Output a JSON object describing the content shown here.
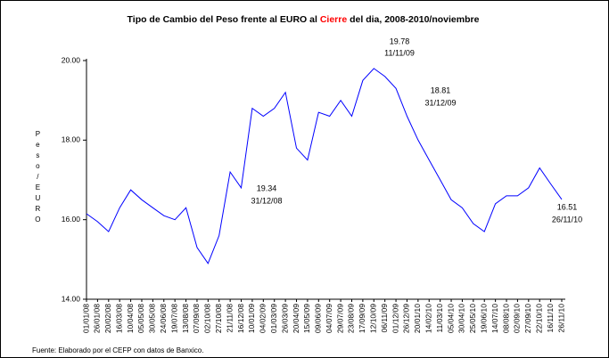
{
  "chart_data": {
    "type": "line",
    "title": [
      "Tipo de Cambio del Peso frente al EURO al ",
      "Cierre",
      " del dia, 2008-2010/noviembre"
    ],
    "title_colors": [
      "#000000",
      "#ff0000",
      "#000000"
    ],
    "y_label": "Peso/EURO",
    "source": "Fuente: Elaborado por el CEFP con datos de Banxico.",
    "categories": [
      "01/01/08",
      "26/01/08",
      "20/02/08",
      "16/03/08",
      "10/04/08",
      "05/05/08",
      "30/05/08",
      "24/06/08",
      "19/07/08",
      "13/08/08",
      "07/09/08",
      "02/10/08",
      "27/10/08",
      "21/11/08",
      "16/12/08",
      "10/01/09",
      "04/02/09",
      "01/03/09",
      "26/03/09",
      "20/04/09",
      "15/05/09",
      "09/06/09",
      "04/07/09",
      "29/07/09",
      "23/08/09",
      "17/09/09",
      "12/10/09",
      "06/11/09",
      "01/12/09",
      "26/12/09",
      "20/01/10",
      "14/02/10",
      "11/03/10",
      "05/04/10",
      "30/04/10",
      "25/05/10",
      "19/06/10",
      "14/07/10",
      "08/08/10",
      "02/09/10",
      "27/09/10",
      "22/10/10",
      "16/11/10",
      "26/11/10"
    ],
    "values": [
      16.15,
      15.95,
      15.7,
      16.3,
      16.75,
      16.5,
      16.3,
      16.1,
      16.0,
      16.3,
      15.3,
      14.9,
      15.6,
      17.2,
      16.8,
      18.8,
      18.6,
      18.8,
      19.2,
      17.8,
      17.5,
      18.7,
      18.6,
      19.0,
      18.6,
      19.5,
      19.8,
      19.6,
      19.3,
      18.6,
      18.0,
      17.5,
      17.0,
      16.5,
      16.3,
      15.9,
      15.7,
      16.4,
      16.6,
      16.6,
      16.8,
      17.3,
      16.9,
      16.51
    ],
    "color": "#0000ff",
    "ylim": [
      14,
      20
    ],
    "yticks": [
      {
        "value": 14,
        "label": "14.00"
      },
      {
        "value": 16,
        "label": "16.00"
      },
      {
        "value": 18,
        "label": "18.00"
      },
      {
        "value": 20,
        "label": "20.00"
      }
    ],
    "annotations": [
      {
        "value": "19.78",
        "date": "11/11/09"
      },
      {
        "value": "18.81",
        "date": "31/12/09"
      },
      {
        "value": "19.34",
        "date": "31/12/08"
      },
      {
        "value": "16.51",
        "date": "26/11/10"
      }
    ]
  }
}
